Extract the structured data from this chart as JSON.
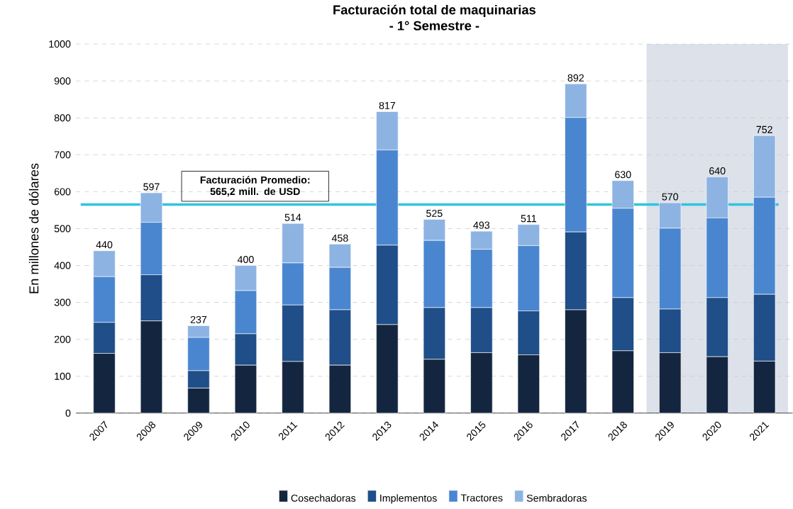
{
  "chart_data": {
    "type": "bar",
    "title": "Facturación total de maquinarias",
    "subtitle": "- 1° Semestre -",
    "ylabel": "En millones de dólares",
    "stacked": true,
    "categories": [
      "2007",
      "2008",
      "2009",
      "2010",
      "2011",
      "2012",
      "2013",
      "2014",
      "2015",
      "2016",
      "2017",
      "2018",
      "2019",
      "2020",
      "2021"
    ],
    "series": [
      {
        "name": "Cosechadoras",
        "color": "#14263f",
        "values": [
          162,
          250,
          68,
          130,
          140,
          130,
          240,
          146,
          164,
          158,
          280,
          169,
          164,
          153,
          141
        ]
      },
      {
        "name": "Implementos",
        "color": "#1f4e88",
        "values": [
          84,
          125,
          47,
          85,
          153,
          150,
          215,
          140,
          122,
          119,
          211,
          144,
          118,
          160,
          181
        ]
      },
      {
        "name": "Tractores",
        "color": "#4a86d0",
        "values": [
          124,
          142,
          90,
          117,
          114,
          115,
          258,
          182,
          158,
          177,
          310,
          242,
          219,
          216,
          263
        ]
      },
      {
        "name": "Sembradoras",
        "color": "#8db3e2",
        "values": [
          70,
          80,
          32,
          68,
          107,
          63,
          104,
          57,
          49,
          57,
          91,
          75,
          69,
          111,
          167
        ]
      }
    ],
    "totals": [
      "440",
      "597",
      "237",
      "400",
      "514",
      "458",
      "817",
      "525",
      "493",
      "511",
      "892",
      "630",
      "570",
      "640",
      "752"
    ],
    "ylim": [
      0,
      1000
    ],
    "yticks": [
      0,
      100,
      200,
      300,
      400,
      500,
      600,
      700,
      800,
      900,
      1000
    ],
    "grid": "y",
    "legend": "bottom",
    "ref_lines": [
      {
        "axis": "y",
        "value": 565.2,
        "label": "Facturación Promedio: 565,2 mill. de USD",
        "color": "#2ec4e0"
      }
    ],
    "bands": [
      {
        "axis": "x",
        "from": "2019",
        "to": "2021",
        "color": "#dce1ea"
      }
    ]
  }
}
